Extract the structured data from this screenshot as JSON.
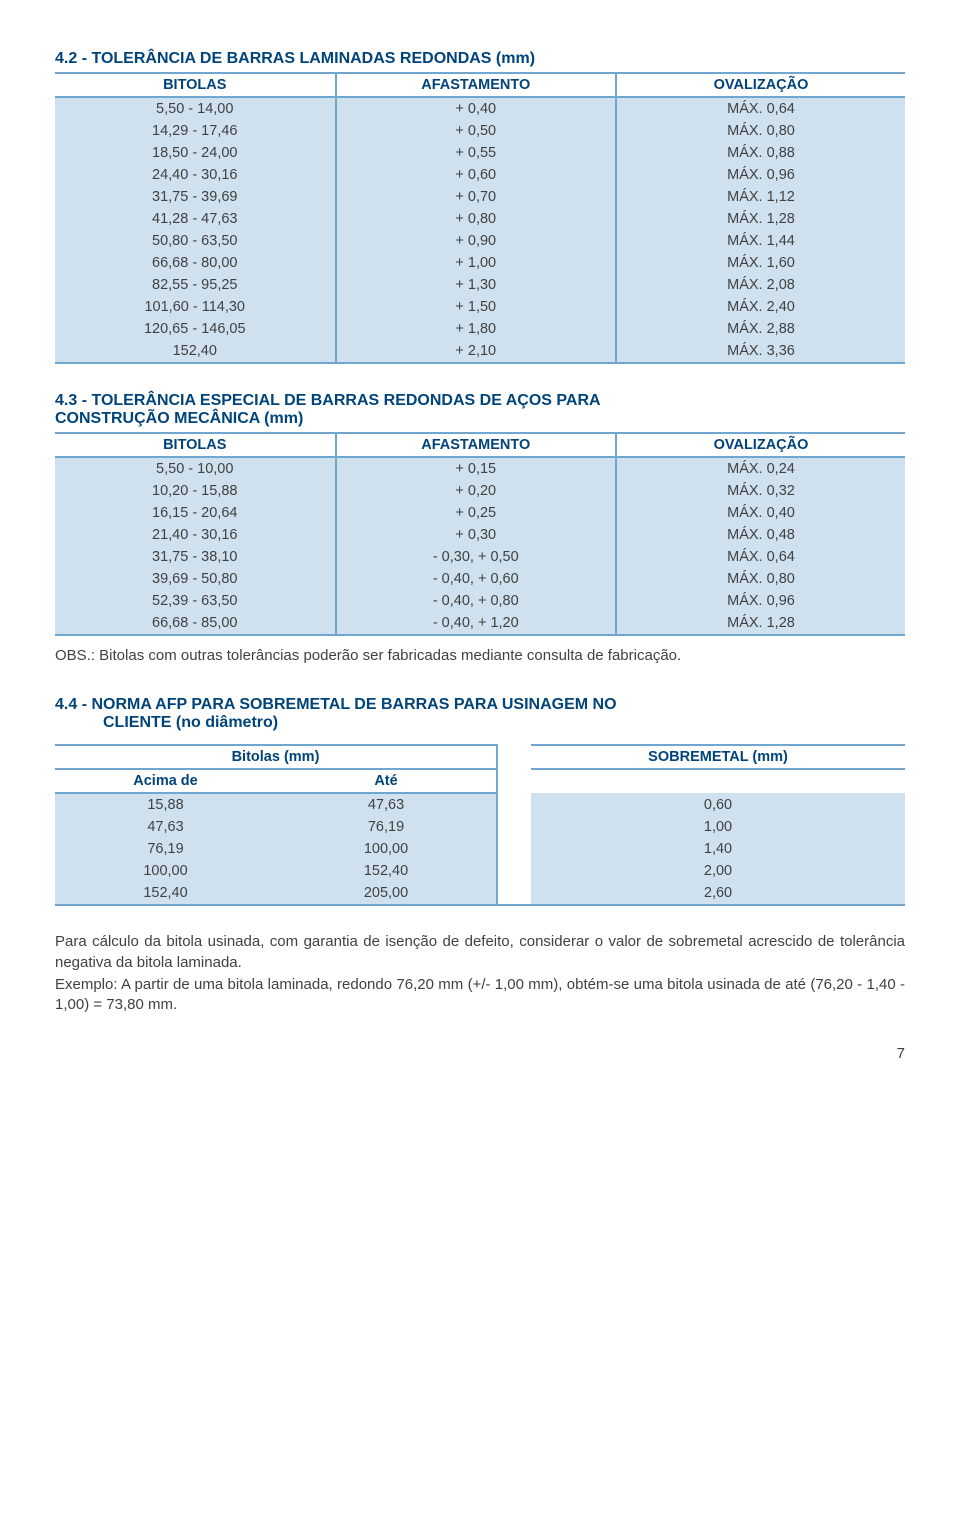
{
  "section42": {
    "title": "4.2 - TOLERÂNCIA DE BARRAS LAMINADAS REDONDAS (mm)",
    "headers": {
      "c1": "BITOLAS",
      "c2": "AFASTAMENTO",
      "c3": "OVALIZAÇÃO"
    },
    "rows": [
      {
        "c1": "5,50 - 14,00",
        "c2": "+ 0,40",
        "c3": "MÁX. 0,64"
      },
      {
        "c1": "14,29 - 17,46",
        "c2": "+ 0,50",
        "c3": "MÁX. 0,80"
      },
      {
        "c1": "18,50 - 24,00",
        "c2": "+ 0,55",
        "c3": "MÁX. 0,88"
      },
      {
        "c1": "24,40 - 30,16",
        "c2": "+ 0,60",
        "c3": "MÁX. 0,96"
      },
      {
        "c1": "31,75 - 39,69",
        "c2": "+ 0,70",
        "c3": "MÁX. 1,12"
      },
      {
        "c1": "41,28 - 47,63",
        "c2": "+ 0,80",
        "c3": "MÁX. 1,28"
      },
      {
        "c1": "50,80 - 63,50",
        "c2": "+ 0,90",
        "c3": "MÁX. 1,44"
      },
      {
        "c1": "66,68 - 80,00",
        "c2": "+ 1,00",
        "c3": "MÁX. 1,60"
      },
      {
        "c1": "82,55 - 95,25",
        "c2": "+ 1,30",
        "c3": "MÁX. 2,08"
      },
      {
        "c1": "101,60 - 114,30",
        "c2": "+ 1,50",
        "c3": "MÁX. 2,40"
      },
      {
        "c1": "120,65 - 146,05",
        "c2": "+ 1,80",
        "c3": "MÁX. 2,88"
      },
      {
        "c1": "152,40",
        "c2": "+ 2,10",
        "c3": "MÁX. 3,36"
      }
    ]
  },
  "section43": {
    "title1": "4.3 - TOLERÂNCIA ESPECIAL DE BARRAS REDONDAS DE AÇOS PARA",
    "title2": "CONSTRUÇÃO MECÂNICA (mm)",
    "headers": {
      "c1": "BITOLAS",
      "c2": "AFASTAMENTO",
      "c3": "OVALIZAÇÃO"
    },
    "rows": [
      {
        "c1": "5,50 - 10,00",
        "c2": "+ 0,15",
        "c3": "MÁX. 0,24"
      },
      {
        "c1": "10,20 - 15,88",
        "c2": "+ 0,20",
        "c3": "MÁX. 0,32"
      },
      {
        "c1": "16,15 - 20,64",
        "c2": "+ 0,25",
        "c3": "MÁX. 0,40"
      },
      {
        "c1": "21,40 - 30,16",
        "c2": "+ 0,30",
        "c3": "MÁX. 0,48"
      },
      {
        "c1": "31,75 - 38,10",
        "c2": "- 0,30, + 0,50",
        "c3": "MÁX. 0,64"
      },
      {
        "c1": "39,69 - 50,80",
        "c2": "- 0,40, + 0,60",
        "c3": "MÁX. 0,80"
      },
      {
        "c1": "52,39 - 63,50",
        "c2": "- 0,40, + 0,80",
        "c3": "MÁX. 0,96"
      },
      {
        "c1": "66,68 - 85,00",
        "c2": "- 0,40, + 1,20",
        "c3": "MÁX. 1,28"
      }
    ]
  },
  "obs": "OBS.: Bitolas com outras tolerâncias poderão ser fabricadas mediante consulta de fabricação.",
  "section44": {
    "title1": "4.4 - NORMA AFP PARA SOBREMETAL DE BARRAS PARA USINAGEM NO",
    "title2": "CLIENTE (no diâmetro)",
    "headers": {
      "bitolas": "Bitolas (mm)",
      "acima": "Acima de",
      "ate": "Até",
      "sobremetal": "SOBREMETAL (mm)"
    },
    "rows": [
      {
        "c1": "15,88",
        "c2": "47,63",
        "c3": "0,60"
      },
      {
        "c1": "47,63",
        "c2": "76,19",
        "c3": "1,00"
      },
      {
        "c1": "76,19",
        "c2": "100,00",
        "c3": "1,40"
      },
      {
        "c1": "100,00",
        "c2": "152,40",
        "c3": "2,00"
      },
      {
        "c1": "152,40",
        "c2": "205,00",
        "c3": "2,60"
      }
    ]
  },
  "bottom": {
    "p1": "Para cálculo da bitola usinada, com garantia de isenção de defeito, considerar o valor de sobremetal acrescido de tolerância negativa da bitola laminada.",
    "p2": "Exemplo: A partir de uma bitola laminada, redondo 76,20 mm (+/- 1,00 mm), obtém-se uma bitola usinada de até (76,20 - 1,40 - 1,00) = 73,80 mm."
  },
  "page": "7",
  "colwidths": {
    "c1": "33%",
    "c2": "33%",
    "c3": "34%"
  }
}
